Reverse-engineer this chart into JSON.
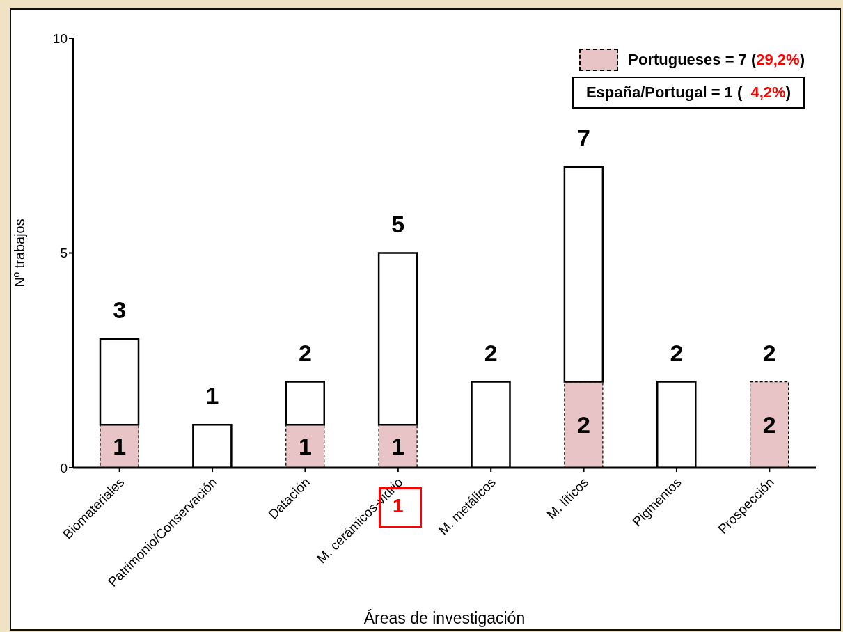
{
  "chart_data": {
    "type": "bar",
    "xlabel": "Áreas de investigación",
    "ylabel": "Nº trabajos",
    "categories": [
      "Biomateriales",
      "Patrimonio/Conservación",
      "Datación",
      "M. cerámicos-vidrio",
      "M. metálicos",
      "M. líticos",
      "Pigmentos",
      "Prospección"
    ],
    "stacked": true,
    "series": [
      {
        "name": "Portugueses = 7 (29,2%)",
        "color": "#e8c4c6",
        "values": [
          1,
          null,
          1,
          1,
          null,
          2,
          null,
          2
        ],
        "value_labels": [
          "1",
          null,
          "1",
          "1",
          null,
          "2",
          null,
          "2"
        ]
      },
      {
        "color": "#ffffff",
        "values": [
          2,
          1,
          1,
          4,
          2,
          5,
          2,
          null
        ]
      }
    ],
    "totals": [
      "3",
      "1",
      "2",
      "5",
      "2",
      "7",
      "2",
      "2"
    ],
    "ylim": [
      0,
      10
    ],
    "yticks": [
      0,
      5,
      10
    ],
    "legend": "top right",
    "annotations": [
      "España/Portugal = 1 (  4,2%)",
      "1"
    ]
  }
}
